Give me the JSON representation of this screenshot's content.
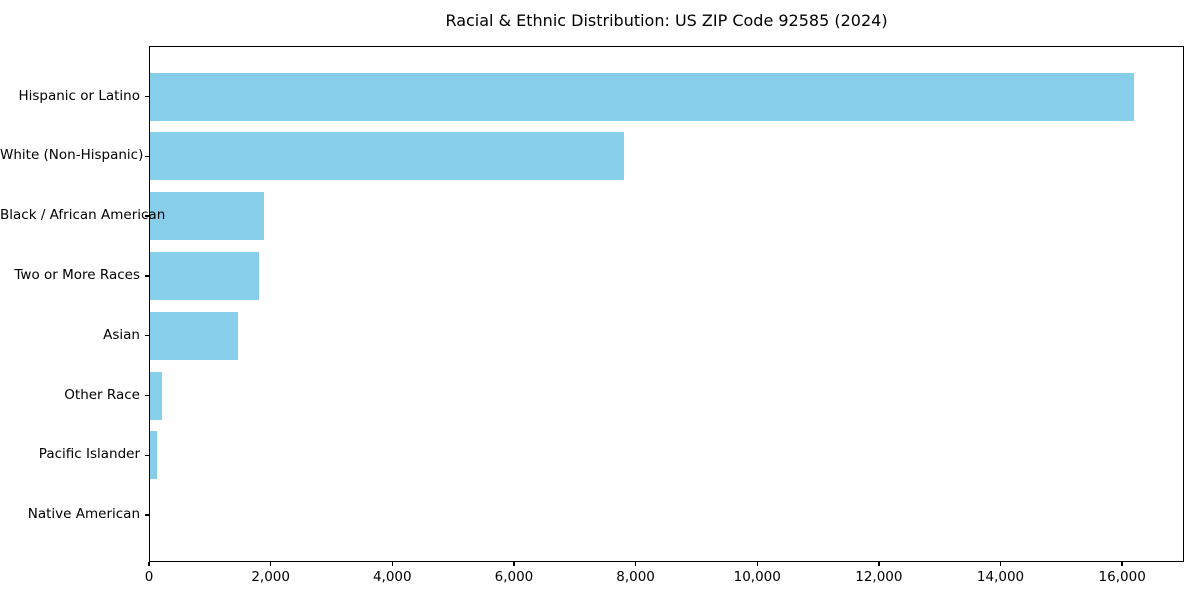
{
  "title": "Racial & Ethnic Distribution: US ZIP Code 92585 (2024)",
  "chart_data": {
    "type": "bar",
    "orientation": "horizontal",
    "title": "Racial & Ethnic Distribution: US ZIP Code 92585 (2024)",
    "categories": [
      "Hispanic or Latino",
      "White (Non-Hispanic)",
      "Black / African American",
      "Two or More Races",
      "Asian",
      "Other Race",
      "Pacific Islander",
      "Native American"
    ],
    "values": [
      16200,
      7800,
      1880,
      1800,
      1440,
      200,
      110,
      0
    ],
    "xlabel": "",
    "ylabel": "",
    "xlim": [
      0,
      17000
    ],
    "xticks": [
      0,
      2000,
      4000,
      6000,
      8000,
      10000,
      12000,
      14000,
      16000
    ],
    "xtick_labels": [
      "0",
      "2,000",
      "4,000",
      "6,000",
      "8,000",
      "10,000",
      "12,000",
      "14,000",
      "16,000"
    ],
    "bar_color": "#87CEEB",
    "grid": false,
    "legend": null
  }
}
